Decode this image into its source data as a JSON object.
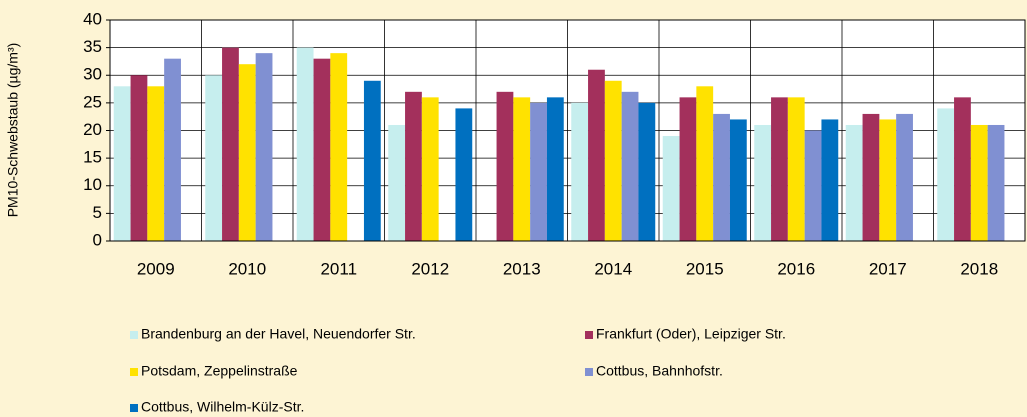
{
  "chart_data": {
    "type": "bar",
    "y_label": "PM10-Schwebstaub (µg/m³)",
    "categories": [
      "2009",
      "2010",
      "2011",
      "2012",
      "2013",
      "2014",
      "2015",
      "2016",
      "2017",
      "2018"
    ],
    "series": [
      {
        "name": "Brandenburg an der Havel, Neuendorfer Str.",
        "color": "#c6eeee",
        "values": [
          28,
          30,
          35,
          21,
          null,
          25,
          19,
          21,
          21,
          24
        ]
      },
      {
        "name": "Frankfurt (Oder), Leipziger Str.",
        "color": "#a3305c",
        "values": [
          30,
          35,
          33,
          27,
          27,
          31,
          26,
          26,
          23,
          26
        ]
      },
      {
        "name": "Potsdam, Zeppelinstraße",
        "color": "#ffe200",
        "values": [
          28,
          32,
          34,
          26,
          26,
          29,
          28,
          26,
          22,
          21
        ]
      },
      {
        "name": "Cottbus, Bahnhofstr.",
        "color": "#8090d2",
        "values": [
          33,
          34,
          null,
          null,
          25,
          27,
          23,
          20,
          23,
          21
        ]
      },
      {
        "name": "Cottbus, Wilhelm-Külz-Str.",
        "color": "#0070c0",
        "values": [
          null,
          null,
          29,
          24,
          26,
          25,
          22,
          22,
          null,
          null
        ]
      }
    ],
    "ylim": [
      0,
      40
    ],
    "yticks": [
      0,
      5,
      10,
      15,
      20,
      25,
      30,
      35,
      40
    ],
    "grid": true
  }
}
